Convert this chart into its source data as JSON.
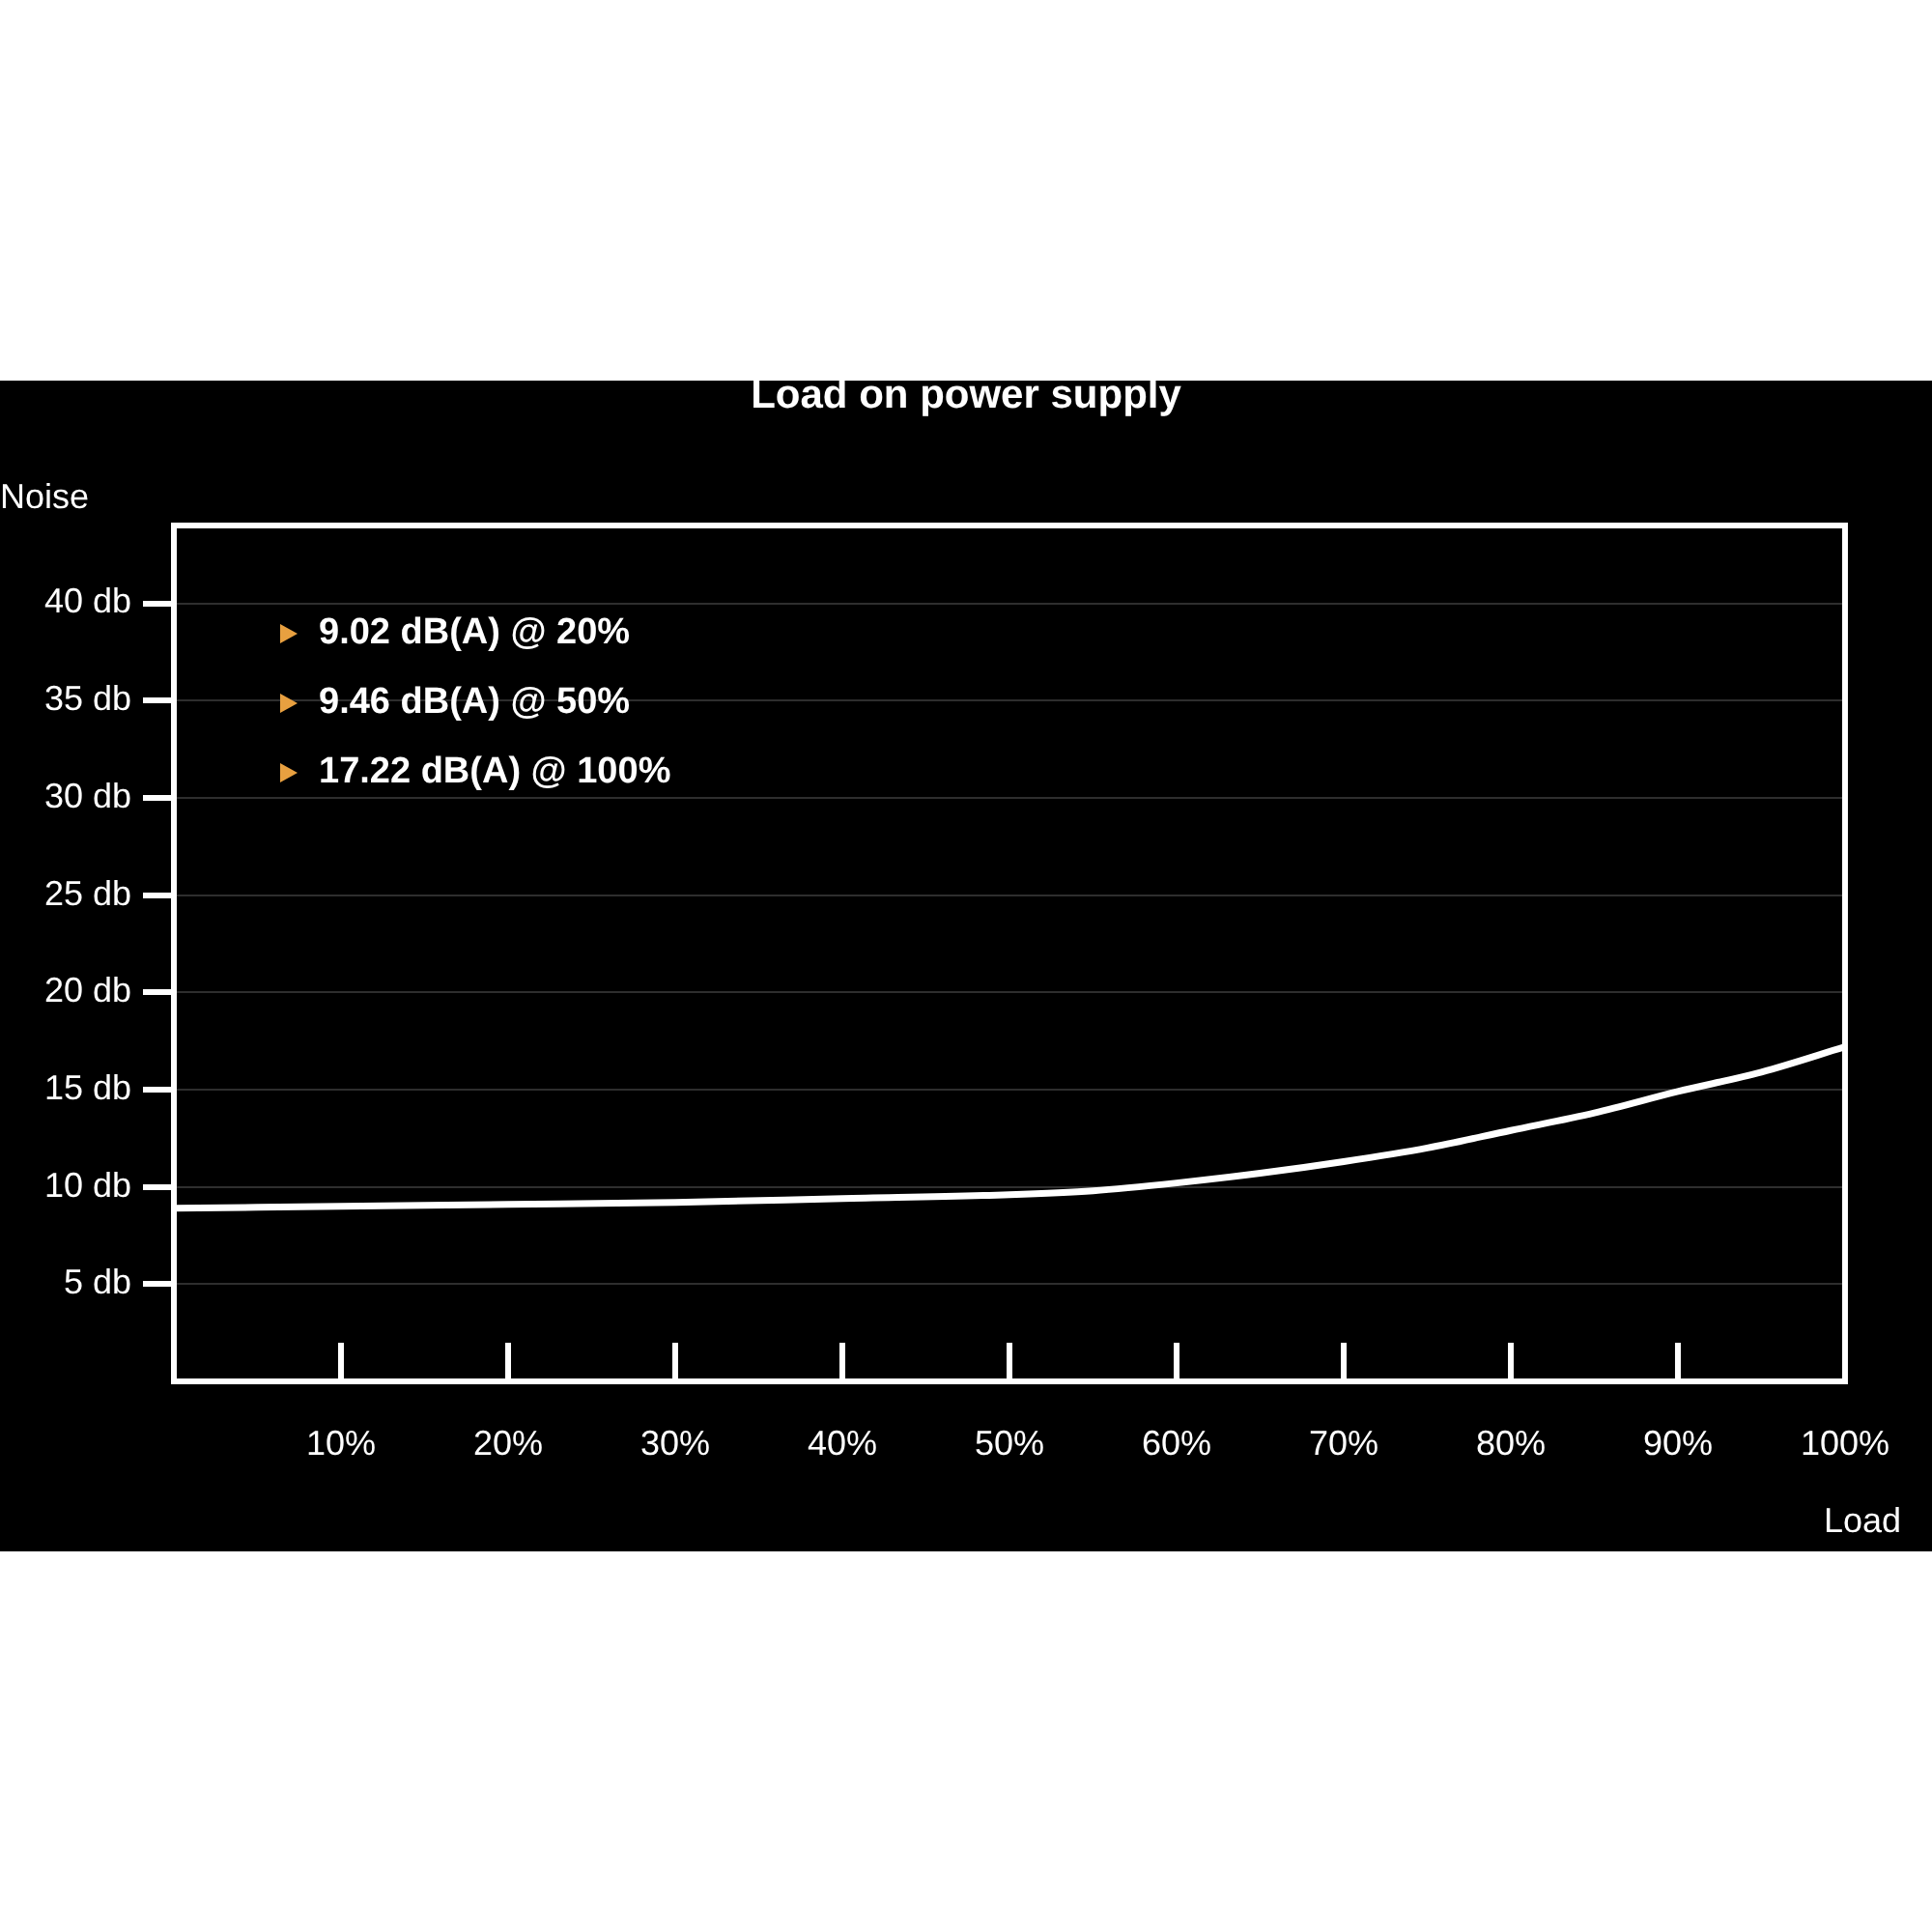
{
  "chart_data": {
    "type": "line",
    "title": "Load on power supply",
    "xlabel": "Load",
    "ylabel": "Noise",
    "x": [
      0,
      10,
      20,
      30,
      40,
      50,
      55,
      60,
      65,
      70,
      75,
      80,
      85,
      90,
      95,
      100
    ],
    "series": [
      {
        "color": "#ffffff",
        "values": [
          8.9,
          9.0,
          9.1,
          9.2,
          9.4,
          9.6,
          9.8,
          10.2,
          10.7,
          11.3,
          12.0,
          12.9,
          13.8,
          14.9,
          15.9,
          17.2
        ]
      }
    ],
    "xlim": [
      0,
      100
    ],
    "xticks": [
      {
        "value": 10,
        "label": "10%"
      },
      {
        "value": 20,
        "label": "20%"
      },
      {
        "value": 30,
        "label": "30%"
      },
      {
        "value": 40,
        "label": "40%"
      },
      {
        "value": 50,
        "label": "50%"
      },
      {
        "value": 60,
        "label": "60%"
      },
      {
        "value": 70,
        "label": "70%"
      },
      {
        "value": 80,
        "label": "80%"
      },
      {
        "value": 90,
        "label": "90%"
      },
      {
        "value": 100,
        "label": "100%"
      }
    ],
    "ylim": [
      0,
      44
    ],
    "yticks": [
      {
        "value": 5,
        "label": "5 db"
      },
      {
        "value": 10,
        "label": "10 db"
      },
      {
        "value": 15,
        "label": "15 db"
      },
      {
        "value": 20,
        "label": "20 db"
      },
      {
        "value": 25,
        "label": "25 db"
      },
      {
        "value": 30,
        "label": "30 db"
      },
      {
        "value": 35,
        "label": "35 db"
      },
      {
        "value": 40,
        "label": "40 db"
      }
    ],
    "annotations": [
      "9.02 dB(A) @ 20%",
      "9.46 dB(A) @ 50%",
      "17.22 dB(A) @ 100%"
    ],
    "grid": "y",
    "legend": false,
    "marker": "none",
    "line_style": "solid"
  }
}
